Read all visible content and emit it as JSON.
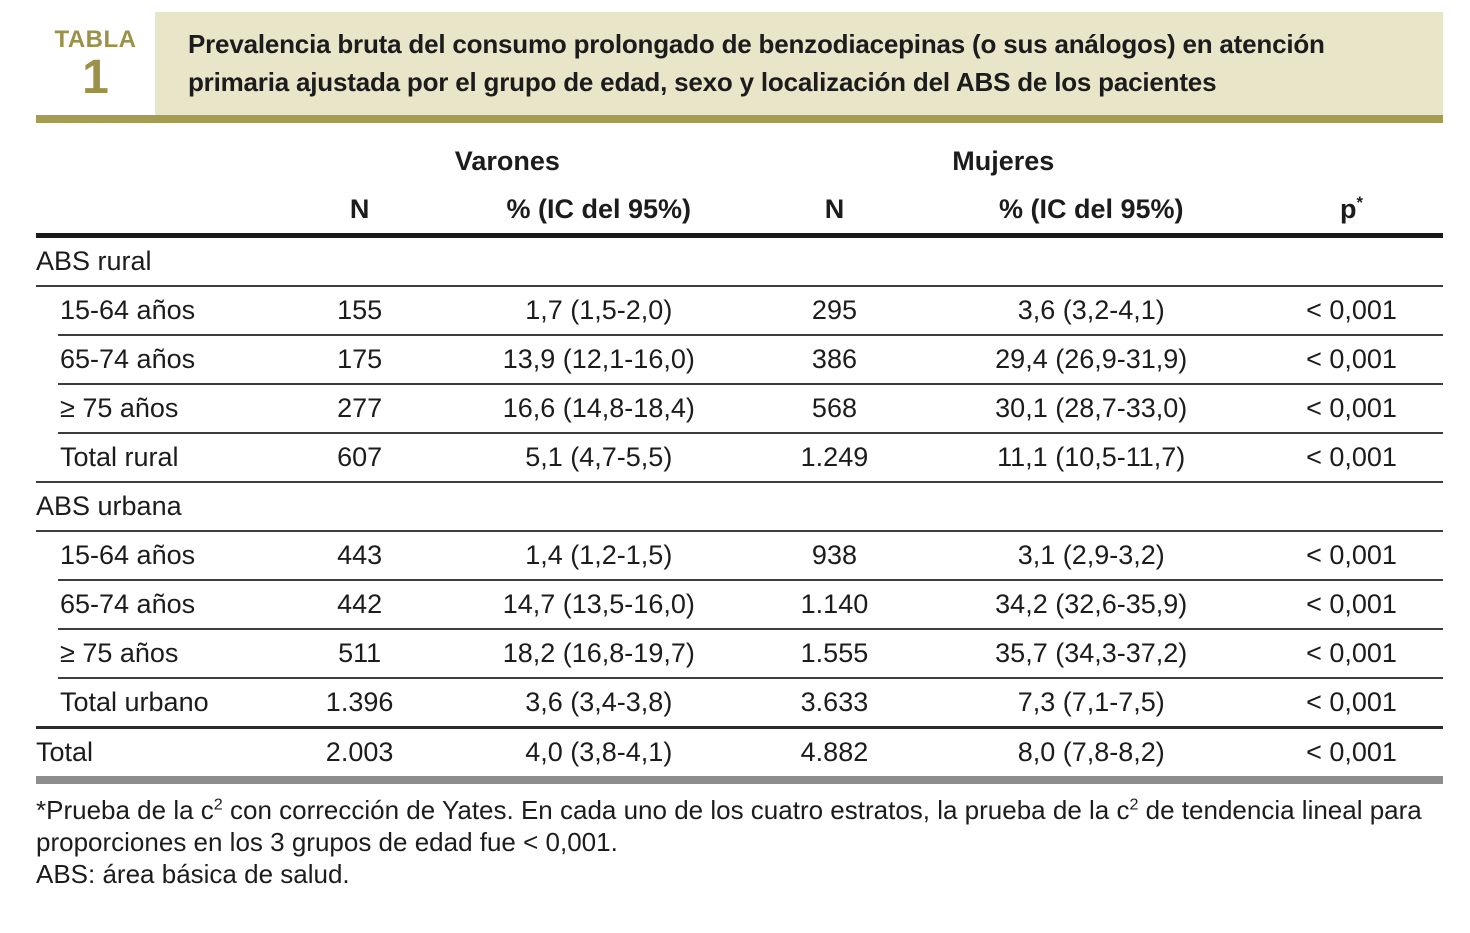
{
  "table_label": {
    "word": "TABLA",
    "number": "1"
  },
  "title": "Prevalencia bruta del consumo prolongado de benzodiacepinas (o sus análogos) en atención primaria ajustada por el grupo de edad, sexo y localización del ABS de los pacientes",
  "table": {
    "header": {
      "varones": "Varones",
      "mujeres": "Mujeres",
      "n": "N",
      "pct": "% (IC del 95%)",
      "p_base": "p",
      "p_sup": "*"
    },
    "sections": [
      {
        "header": "ABS rural",
        "rows": [
          {
            "label": "15-64 años",
            "n1": "155",
            "pct1": "1,7 (1,5-2,0)",
            "n2": "295",
            "pct2": "3,6 (3,2-4,1)",
            "p": "< 0,001"
          },
          {
            "label": "65-74 años",
            "n1": "175",
            "pct1": "13,9 (12,1-16,0)",
            "n2": "386",
            "pct2": "29,4 (26,9-31,9)",
            "p": "< 0,001"
          },
          {
            "label": "≥ 75 años",
            "n1": "277",
            "pct1": "16,6 (14,8-18,4)",
            "n2": "568",
            "pct2": "30,1 (28,7-33,0)",
            "p": "< 0,001"
          },
          {
            "label": "Total rural",
            "n1": "607",
            "pct1": "5,1 (4,7-5,5)",
            "n2": "1.249",
            "pct2": "11,1 (10,5-11,7)",
            "p": "< 0,001"
          }
        ]
      },
      {
        "header": "ABS urbana",
        "rows": [
          {
            "label": "15-64 años",
            "n1": "443",
            "pct1": "1,4 (1,2-1,5)",
            "n2": "938",
            "pct2": "3,1 (2,9-3,2)",
            "p": "< 0,001"
          },
          {
            "label": "65-74 años",
            "n1": "442",
            "pct1": "14,7 (13,5-16,0)",
            "n2": "1.140",
            "pct2": "34,2 (32,6-35,9)",
            "p": "< 0,001"
          },
          {
            "label": "≥ 75 años",
            "n1": "511",
            "pct1": "18,2 (16,8-19,7)",
            "n2": "1.555",
            "pct2": "35,7 (34,3-37,2)",
            "p": "< 0,001"
          },
          {
            "label": "Total urbano",
            "n1": "1.396",
            "pct1": "3,6 (3,4-3,8)",
            "n2": "3.633",
            "pct2": "7,3 (7,1-7,5)",
            "p": "< 0,001"
          }
        ]
      }
    ],
    "total_row": {
      "label": "Total",
      "n1": "2.003",
      "pct1": "4,0 (3,8-4,1)",
      "n2": "4.882",
      "pct2": "8,0 (7,8-8,2)",
      "p": "< 0,001"
    }
  },
  "footnotes": {
    "fn1_a": "*Prueba de la c",
    "fn1_sup_a": "2",
    "fn1_b": " con corrección de Yates. En cada uno de los cuatro estratos, la prueba de la c",
    "fn1_sup_b": "2",
    "fn1_c": " de tendencia lineal para proporciones en los 3 grupos de edad fue < 0,001.",
    "fn2": "ABS: área básica de salud."
  },
  "colors": {
    "olive_accent": "#a59c53",
    "olive_label_text": "#9c9149",
    "title_box_beige": "#e9e5c9",
    "bottom_bar_gray": "#8d8d8d",
    "text_black": "#1c1c1c"
  }
}
